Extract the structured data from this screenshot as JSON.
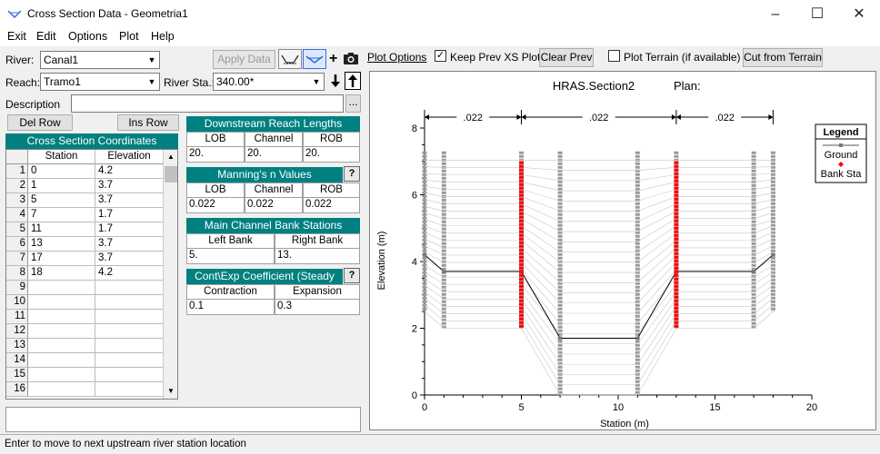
{
  "window": {
    "title": "Cross Section Data - Geometria1"
  },
  "menu": [
    "Exit",
    "Edit",
    "Options",
    "Plot",
    "Help"
  ],
  "river": {
    "label": "River:",
    "value": "Canal1"
  },
  "reach": {
    "label": "Reach:",
    "value": "Tramo1"
  },
  "river_sta": {
    "label": "River Sta.:",
    "value": "340.00*"
  },
  "description": {
    "label": "Description"
  },
  "buttons": {
    "apply_data": "Apply Data",
    "del_row": "Del Row",
    "ins_row": "Ins Row",
    "plot_options": "Plot Options",
    "clear_prev": "Clear Prev",
    "cut_from_terrain": "Cut from Terrain",
    "help": "?"
  },
  "checks": {
    "keep_prev": "Keep Prev XS Plots",
    "plot_terrain": "Plot Terrain (if available)"
  },
  "xs_table": {
    "title": "Cross Section Coordinates",
    "headers": [
      "Station",
      "Elevation"
    ],
    "rows": [
      {
        "n": "1",
        "station": "0",
        "elev": "4.2"
      },
      {
        "n": "2",
        "station": "1",
        "elev": "3.7"
      },
      {
        "n": "3",
        "station": "5",
        "elev": "3.7"
      },
      {
        "n": "4",
        "station": "7",
        "elev": "1.7"
      },
      {
        "n": "5",
        "station": "11",
        "elev": "1.7"
      },
      {
        "n": "6",
        "station": "13",
        "elev": "3.7"
      },
      {
        "n": "7",
        "station": "17",
        "elev": "3.7"
      },
      {
        "n": "8",
        "station": "18",
        "elev": "4.2"
      },
      {
        "n": "9",
        "station": "",
        "elev": ""
      },
      {
        "n": "10",
        "station": "",
        "elev": ""
      },
      {
        "n": "11",
        "station": "",
        "elev": ""
      },
      {
        "n": "12",
        "station": "",
        "elev": ""
      },
      {
        "n": "13",
        "station": "",
        "elev": ""
      },
      {
        "n": "14",
        "station": "",
        "elev": ""
      },
      {
        "n": "15",
        "station": "",
        "elev": ""
      },
      {
        "n": "16",
        "station": "",
        "elev": ""
      }
    ]
  },
  "downstream": {
    "title": "Downstream Reach Lengths",
    "headers": [
      "LOB",
      "Channel",
      "ROB"
    ],
    "values": [
      "20.",
      "20.",
      "20."
    ]
  },
  "mannings": {
    "title": "Manning's n Values",
    "headers": [
      "LOB",
      "Channel",
      "ROB"
    ],
    "values": [
      "0.022",
      "0.022",
      "0.022"
    ]
  },
  "bank_stations": {
    "title": "Main Channel Bank Stations",
    "headers": [
      "Left Bank",
      "Right Bank"
    ],
    "values": [
      "5.",
      "13."
    ]
  },
  "coeff": {
    "title": "Cont\\Exp Coefficient (Steady",
    "headers": [
      "Contraction",
      "Expansion"
    ],
    "values": [
      "0.1",
      "0.3"
    ]
  },
  "status": "Enter to move to next upstream river station location",
  "chart_data": {
    "type": "line",
    "title": "HRAS.Section2",
    "subtitle": "Plan:",
    "xlabel": "Station (m)",
    "ylabel": "Elevation (m)",
    "xlim": [
      0,
      20
    ],
    "ylim": [
      0,
      8
    ],
    "xticks": [
      0,
      5,
      10,
      15,
      20
    ],
    "yticks": [
      0,
      2,
      4,
      6,
      8
    ],
    "series": [
      {
        "name": "Ground",
        "x": [
          0,
          1,
          5,
          7,
          11,
          13,
          17,
          18
        ],
        "y": [
          4.2,
          3.7,
          3.7,
          1.7,
          1.7,
          3.7,
          3.7,
          4.2
        ]
      },
      {
        "name": "Bank Sta",
        "x": [
          5,
          13
        ],
        "y": [
          3.7,
          3.7
        ]
      }
    ],
    "n_labels": [
      ".022",
      ".022",
      ".022"
    ],
    "legend": {
      "title": "Legend",
      "placement": "top-right"
    },
    "colors": {
      "ground": "#000000",
      "bank": "#ff0000",
      "prev": "#999999"
    }
  }
}
